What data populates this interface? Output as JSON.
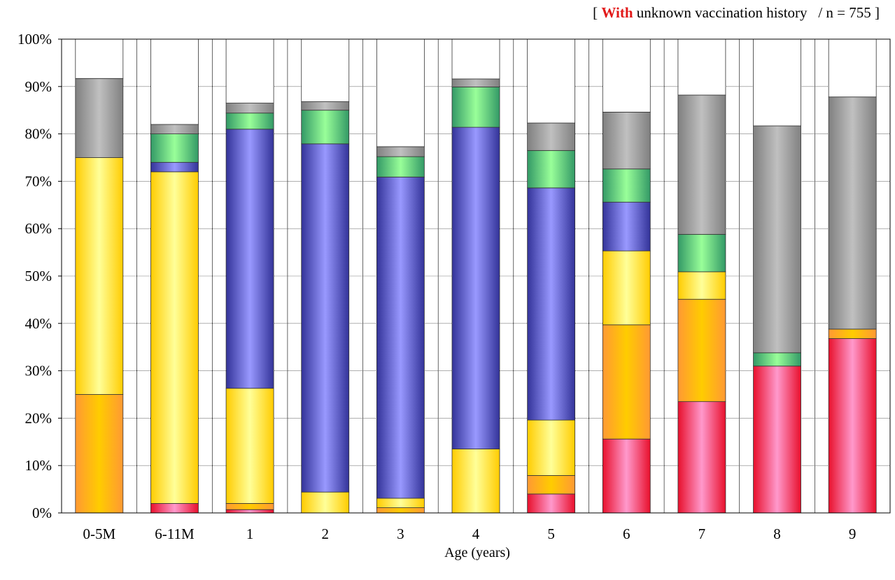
{
  "chart_data": {
    "type": "bar",
    "stacked": true,
    "title": {
      "open_bracket": "[",
      "highlight": "With",
      "rest": "unknown vaccination history",
      "n_text": "/ n = 755",
      "close_bracket": "]"
    },
    "xlabel": "Age (years)",
    "ylabel": "",
    "ylim": [
      0,
      100
    ],
    "yticks": [
      "0%",
      "10%",
      "20%",
      "30%",
      "40%",
      "50%",
      "60%",
      "70%",
      "80%",
      "90%",
      "100%"
    ],
    "grid": true,
    "legend": "none",
    "categories": [
      "0-5M",
      "6-11M",
      "1",
      "2",
      "3",
      "4",
      "5",
      "6",
      "7",
      "8",
      "9"
    ],
    "series": [
      {
        "color_dark": "#e8102c",
        "color_light": "#ff99cc",
        "values": [
          0,
          2.0,
          0.7,
          0,
          0,
          0,
          4.0,
          15.6,
          23.5,
          31.0,
          36.8
        ]
      },
      {
        "color_dark": "#ff9933",
        "color_light": "#ffcc00",
        "values": [
          25.0,
          0,
          1.3,
          0,
          1.1,
          0,
          3.9,
          24.1,
          21.6,
          0,
          2.0
        ]
      },
      {
        "color_dark": "#ffcc00",
        "color_light": "#ffff99",
        "values": [
          50.0,
          70.0,
          24.3,
          4.4,
          2.0,
          13.5,
          11.7,
          15.6,
          5.8,
          0,
          0
        ]
      },
      {
        "color_dark": "#333399",
        "color_light": "#9999ff",
        "values": [
          0,
          2.0,
          54.7,
          73.5,
          67.8,
          67.9,
          49.0,
          10.3,
          0,
          0,
          0
        ]
      },
      {
        "color_dark": "#339966",
        "color_light": "#99ff99",
        "values": [
          0,
          6.0,
          3.4,
          7.1,
          4.3,
          8.5,
          7.9,
          7.0,
          7.9,
          2.8,
          0
        ]
      },
      {
        "color_dark": "#808080",
        "color_light": "#c0c0c0",
        "values": [
          16.7,
          2.0,
          2.1,
          1.8,
          2.1,
          1.7,
          5.8,
          12.0,
          29.4,
          47.9,
          49.0
        ]
      }
    ]
  }
}
